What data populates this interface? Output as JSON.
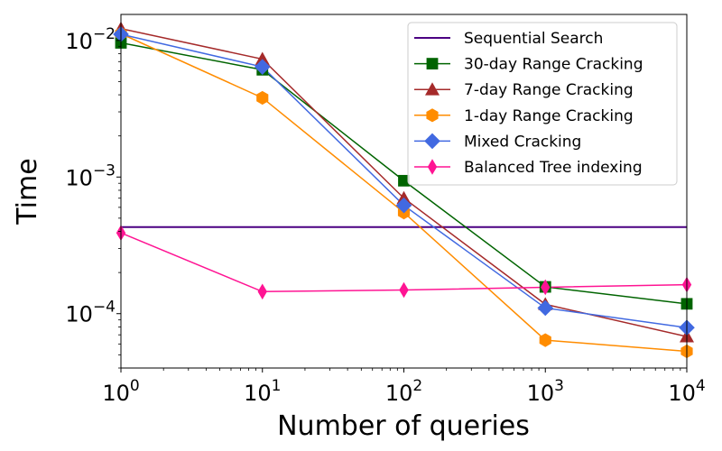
{
  "chart_data": {
    "type": "line",
    "xlabel": "Number of queries",
    "ylabel": "Time",
    "xscale": "log",
    "yscale": "log",
    "xlim": [
      1,
      10000
    ],
    "ylim": [
      4e-05,
      0.0155
    ],
    "grid": false,
    "legend_position": "top-right",
    "x_ticks": [
      {
        "value": 1,
        "base": "10",
        "exp": "0"
      },
      {
        "value": 10,
        "base": "10",
        "exp": "1"
      },
      {
        "value": 100,
        "base": "10",
        "exp": "2"
      },
      {
        "value": 1000,
        "base": "10",
        "exp": "3"
      },
      {
        "value": 10000,
        "base": "10",
        "exp": "4"
      }
    ],
    "y_ticks": [
      {
        "value": 0.0001,
        "base": "10",
        "exp": "−4"
      },
      {
        "value": 0.001,
        "base": "10",
        "exp": "−3"
      },
      {
        "value": 0.01,
        "base": "10",
        "exp": "−2"
      }
    ],
    "series": [
      {
        "name": "Sequential Search",
        "color": "#4b0082",
        "marker": "none",
        "x": [
          1,
          10000
        ],
        "y": [
          0.00043,
          0.00043
        ]
      },
      {
        "name": "30-day Range Cracking",
        "color": "#006400",
        "marker": "square",
        "x": [
          1,
          10,
          100,
          1000,
          10000
        ],
        "y": [
          0.0096,
          0.0061,
          0.00094,
          0.000157,
          0.000118
        ]
      },
      {
        "name": "7-day Range Cracking",
        "color": "#a52a2a",
        "marker": "triangle",
        "x": [
          1,
          10,
          100,
          1000,
          10000
        ],
        "y": [
          0.0122,
          0.0073,
          0.0007,
          0.000117,
          6.8e-05
        ]
      },
      {
        "name": "1-day Range Cracking",
        "color": "#ff8c00",
        "marker": "hexagon",
        "x": [
          1,
          10,
          100,
          1000,
          10000
        ],
        "y": [
          0.0112,
          0.0038,
          0.00055,
          6.4e-05,
          5.3e-05
        ]
      },
      {
        "name": "Mixed Cracking",
        "color": "#4169e1",
        "marker": "diamond",
        "x": [
          1,
          10,
          100,
          1000,
          10000
        ],
        "y": [
          0.0111,
          0.0064,
          0.00062,
          0.00011,
          7.9e-05
        ]
      },
      {
        "name": "Balanced Tree indexing",
        "color": "#ff1493",
        "marker": "thin-diamond",
        "x": [
          1,
          10,
          100,
          1000,
          10000
        ],
        "y": [
          0.00039,
          0.000145,
          0.000149,
          0.000156,
          0.000163
        ]
      }
    ]
  }
}
